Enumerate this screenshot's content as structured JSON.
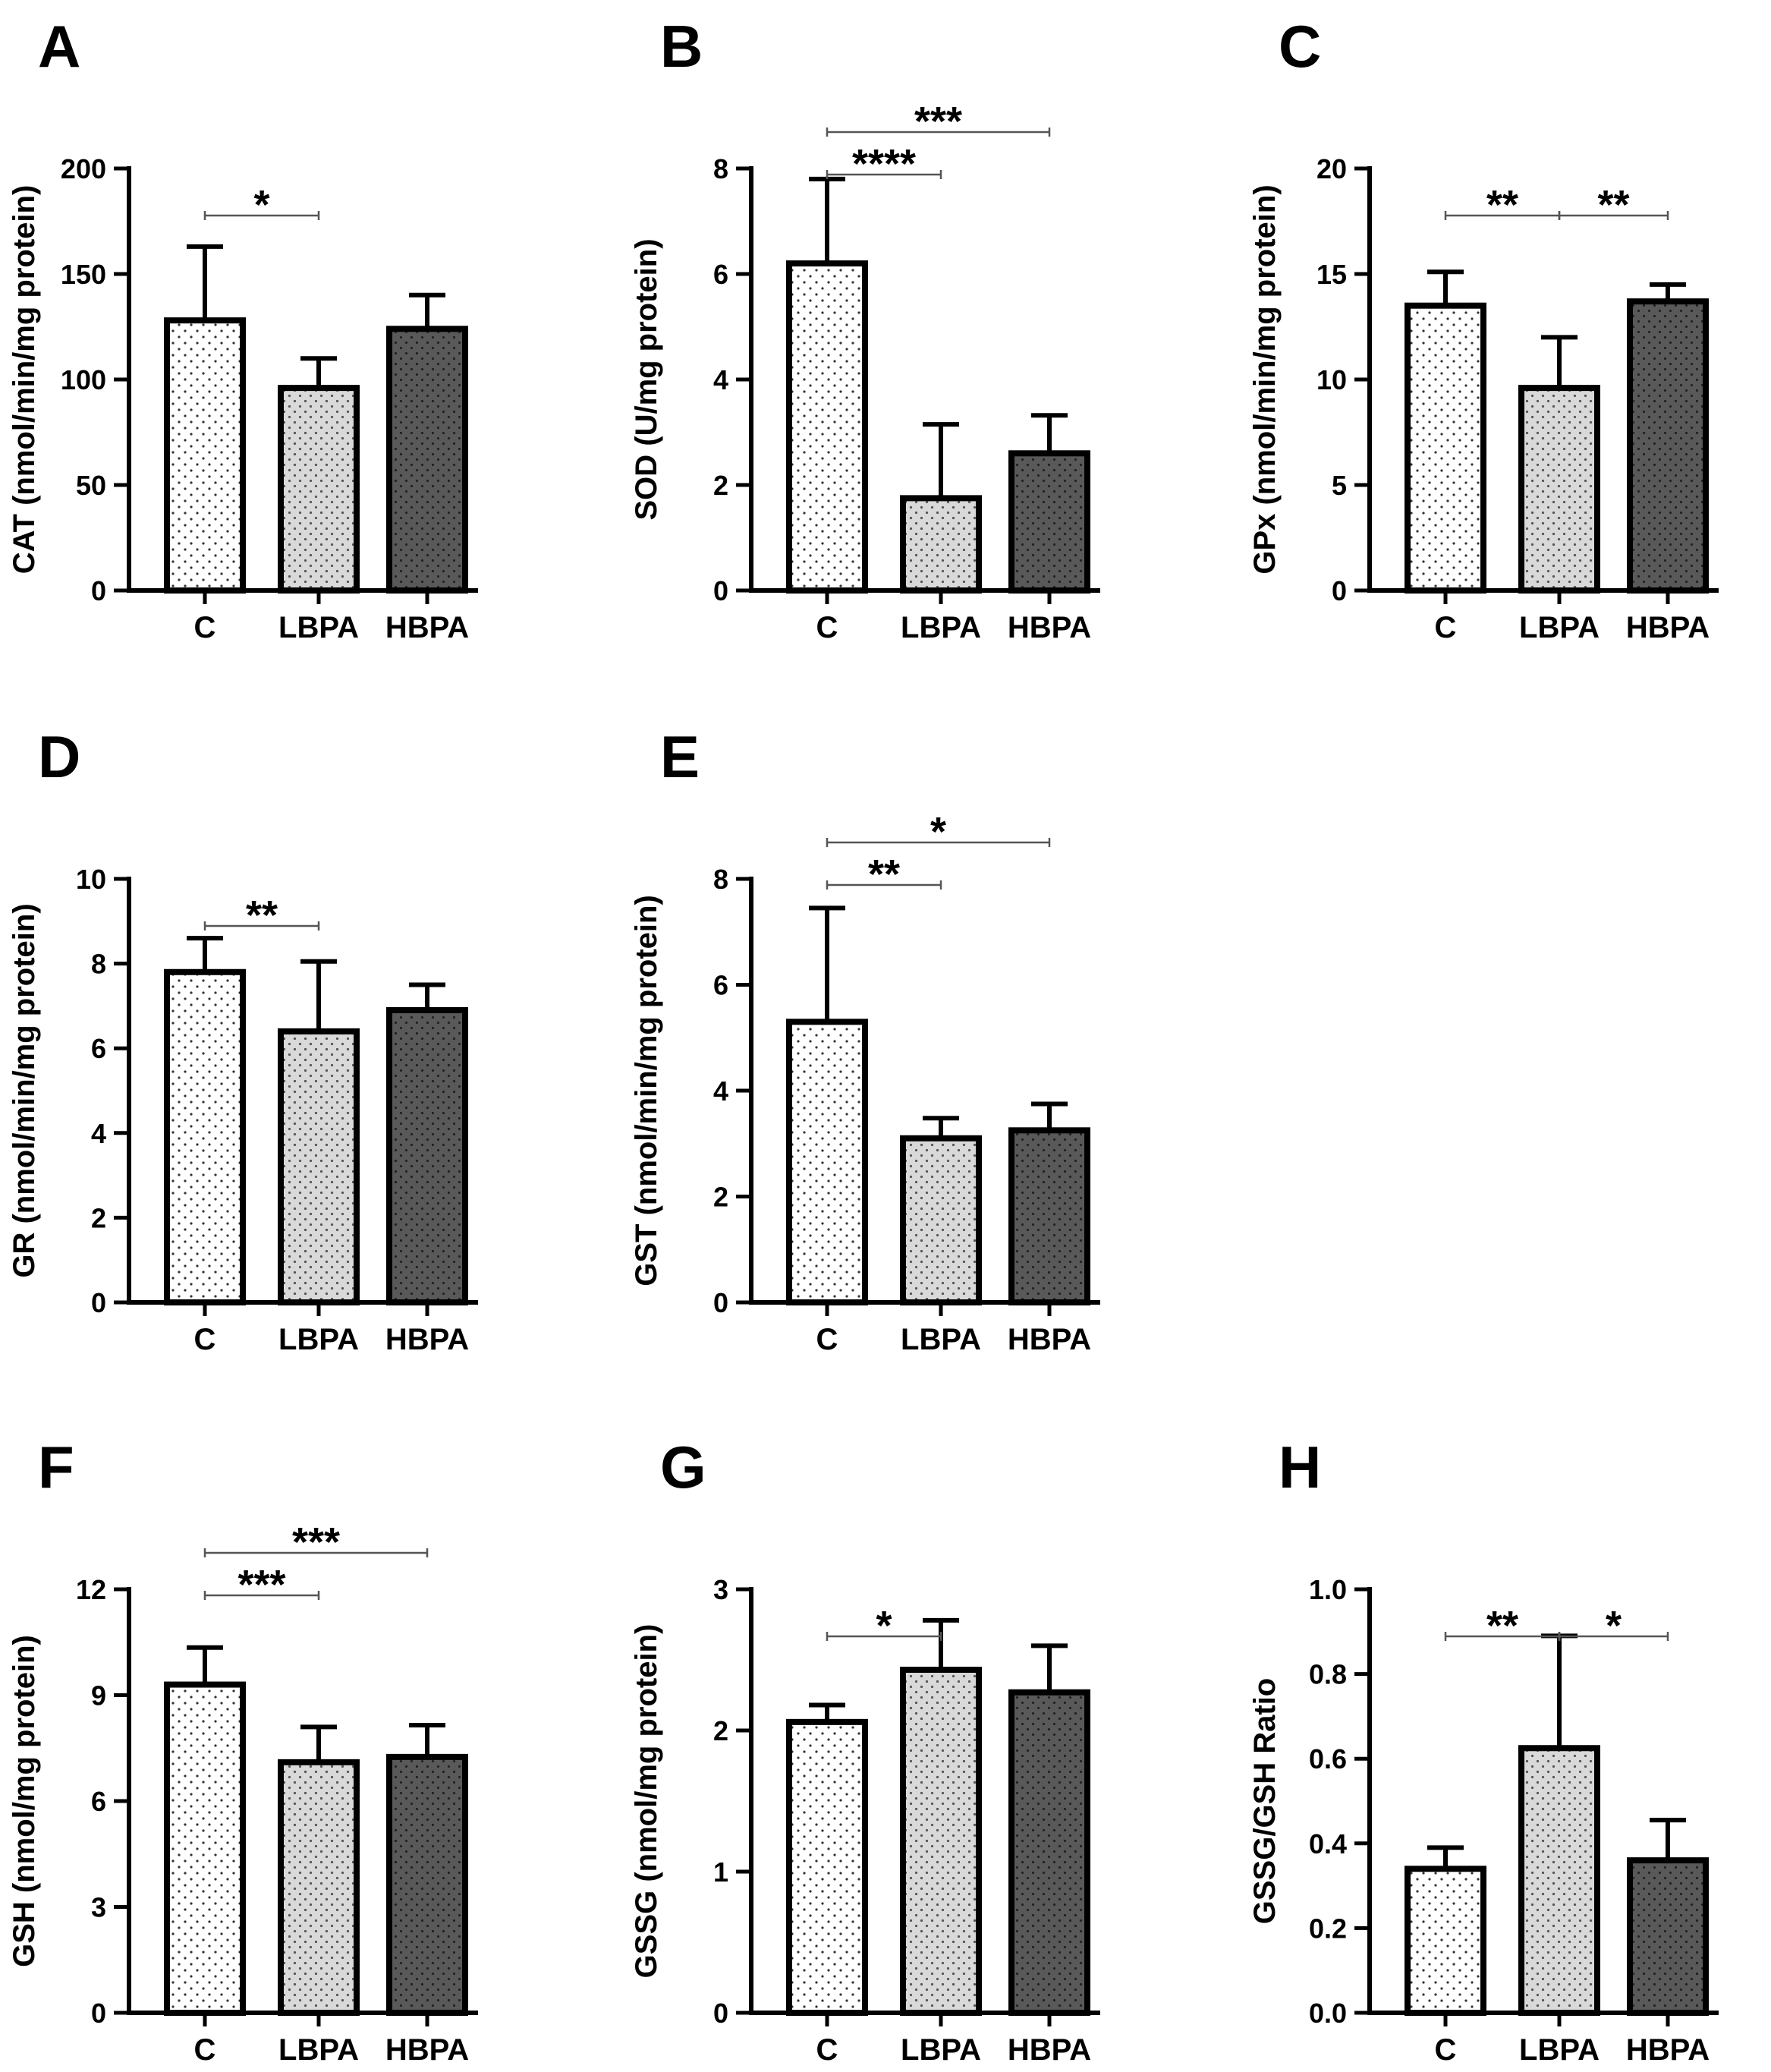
{
  "figure": {
    "colors": {
      "C": "#ffffff",
      "LBPA": "#d9d9d9",
      "HBPA": "#595959",
      "axis": "#000000"
    },
    "patterns": {
      "C": "dots-sparse",
      "LBPA": "dots",
      "HBPA": "dots"
    }
  },
  "chart_data": [
    {
      "panel": "A",
      "type": "bar",
      "categories": [
        "C",
        "LBPA",
        "HBPA"
      ],
      "values": [
        128,
        96,
        124
      ],
      "errors": [
        35,
        14,
        16
      ],
      "ylabel": "CAT (nmol/min/mg protein)",
      "ylim": [
        0,
        200
      ],
      "yticks": [
        0,
        50,
        100,
        150,
        200
      ],
      "ytick_labels": [
        "0",
        "50",
        "100",
        "150",
        "200"
      ],
      "significance": [
        {
          "from": 0,
          "to": 1,
          "label": "*"
        }
      ]
    },
    {
      "panel": "B",
      "type": "bar",
      "categories": [
        "C",
        "LBPA",
        "HBPA"
      ],
      "values": [
        6.2,
        1.75,
        2.6
      ],
      "errors": [
        1.6,
        1.4,
        0.72
      ],
      "ylabel": "SOD (U/mg protein)",
      "ylim": [
        0,
        8
      ],
      "yticks": [
        0,
        2,
        4,
        6,
        8
      ],
      "ytick_labels": [
        "0",
        "2",
        "4",
        "6",
        "8"
      ],
      "significance": [
        {
          "from": 0,
          "to": 1,
          "label": "****"
        },
        {
          "from": 0,
          "to": 2,
          "label": "***"
        }
      ]
    },
    {
      "panel": "C",
      "type": "bar",
      "categories": [
        "C",
        "LBPA",
        "HBPA"
      ],
      "values": [
        13.5,
        9.6,
        13.7
      ],
      "errors": [
        1.6,
        2.4,
        0.8
      ],
      "ylabel": "GPx (nmol/min/mg protein)",
      "ylim": [
        0,
        20
      ],
      "yticks": [
        0,
        5,
        10,
        15,
        20
      ],
      "ytick_labels": [
        "0",
        "5",
        "10",
        "15",
        "20"
      ],
      "significance": [
        {
          "from": 0,
          "to": 1,
          "label": "**"
        },
        {
          "from": 1,
          "to": 2,
          "label": "**"
        }
      ]
    },
    {
      "panel": "D",
      "type": "bar",
      "categories": [
        "C",
        "LBPA",
        "HBPA"
      ],
      "values": [
        7.8,
        6.4,
        6.9
      ],
      "errors": [
        0.8,
        1.65,
        0.6
      ],
      "ylabel": "GR (nmol/min/mg protein)",
      "ylim": [
        0,
        10
      ],
      "yticks": [
        0,
        2,
        4,
        6,
        8,
        10
      ],
      "ytick_labels": [
        "0",
        "2",
        "4",
        "6",
        "8",
        "10"
      ],
      "significance": [
        {
          "from": 0,
          "to": 1,
          "label": "**"
        }
      ]
    },
    {
      "panel": "E",
      "type": "bar",
      "categories": [
        "C",
        "LBPA",
        "HBPA"
      ],
      "values": [
        5.3,
        3.1,
        3.25
      ],
      "errors": [
        2.15,
        0.38,
        0.5
      ],
      "ylabel": "GST (nmol/min/mg protein)",
      "ylim": [
        0,
        8
      ],
      "yticks": [
        0,
        2,
        4,
        6,
        8
      ],
      "ytick_labels": [
        "0",
        "2",
        "4",
        "6",
        "8"
      ],
      "significance": [
        {
          "from": 0,
          "to": 1,
          "label": "**"
        },
        {
          "from": 0,
          "to": 2,
          "label": "*"
        }
      ]
    },
    {
      "panel": "F",
      "type": "bar",
      "categories": [
        "C",
        "LBPA",
        "HBPA"
      ],
      "values": [
        9.3,
        7.1,
        7.25
      ],
      "errors": [
        1.05,
        1.0,
        0.9
      ],
      "ylabel": "GSH (nmol/mg protein)",
      "ylim": [
        0,
        12
      ],
      "yticks": [
        0,
        3,
        6,
        9,
        12
      ],
      "ytick_labels": [
        "0",
        "3",
        "6",
        "9",
        "12"
      ],
      "significance": [
        {
          "from": 0,
          "to": 1,
          "label": "***"
        },
        {
          "from": 0,
          "to": 2,
          "label": "***"
        }
      ]
    },
    {
      "panel": "G",
      "type": "bar",
      "categories": [
        "C",
        "LBPA",
        "HBPA"
      ],
      "values": [
        2.06,
        2.43,
        2.27
      ],
      "errors": [
        0.12,
        0.35,
        0.33
      ],
      "ylabel": "GSSG (nmol/mg protein)",
      "ylim": [
        0,
        3
      ],
      "yticks": [
        0,
        1,
        2,
        3
      ],
      "ytick_labels": [
        "0",
        "1",
        "2",
        "3"
      ],
      "significance": [
        {
          "from": 0,
          "to": 1,
          "label": "*"
        }
      ]
    },
    {
      "panel": "H",
      "type": "bar",
      "categories": [
        "C",
        "LBPA",
        "HBPA"
      ],
      "values": [
        0.34,
        0.625,
        0.36
      ],
      "errors": [
        0.05,
        0.265,
        0.095
      ],
      "ylabel": "GSSG/GSH Ratio",
      "ylim": [
        0,
        1.0
      ],
      "yticks": [
        0,
        0.2,
        0.4,
        0.6,
        0.8,
        1.0
      ],
      "ytick_labels": [
        "0.0",
        "0.2",
        "0.4",
        "0.6",
        "0.8",
        "1.0"
      ],
      "significance": [
        {
          "from": 0,
          "to": 1,
          "label": "**"
        },
        {
          "from": 1,
          "to": 2,
          "label": "*"
        }
      ]
    }
  ]
}
